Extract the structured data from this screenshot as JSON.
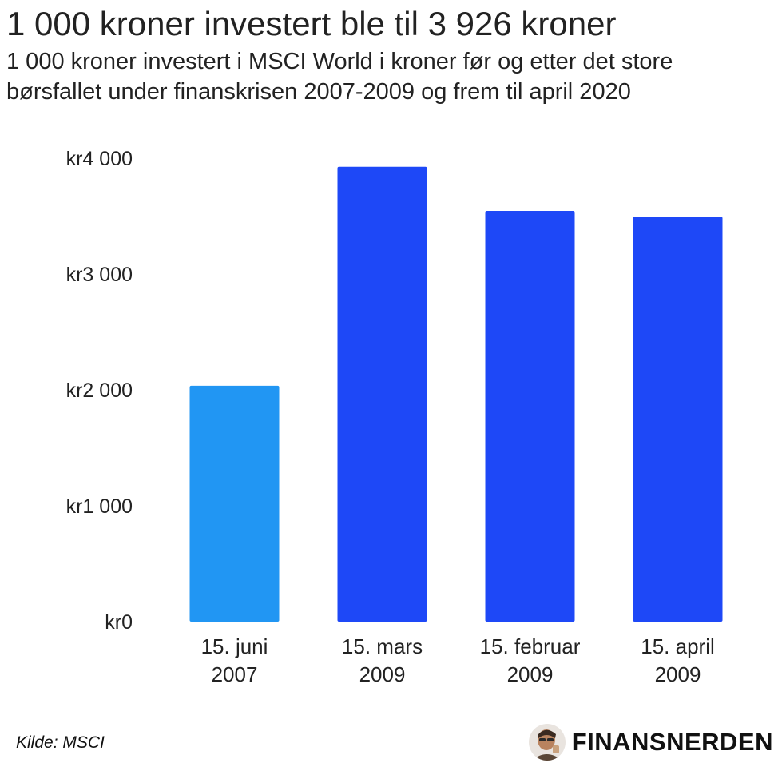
{
  "chart_data": {
    "type": "bar",
    "title": "1 000 kroner investert ble til 3 926 kroner",
    "subtitle": "1 000 kroner investert i MSCI World i kroner før og etter det store børsfallet under finanskrisen 2007-2009 og frem til april 2020",
    "categories": [
      [
        "15. juni",
        "2007"
      ],
      [
        "15. mars",
        "2009"
      ],
      [
        "15. februar",
        "2009"
      ],
      [
        "15. april",
        "2009"
      ]
    ],
    "values": [
      2035,
      3926,
      3545,
      3495
    ],
    "bar_colors": [
      "#2196f3",
      "#1e48f7",
      "#1e48f7",
      "#1e48f7"
    ],
    "ylim": [
      0,
      4000
    ],
    "yticks": [
      0,
      1000,
      2000,
      3000,
      4000
    ],
    "ytick_labels": [
      "kr0",
      "kr1 000",
      "kr2 000",
      "kr3 000",
      "kr4 000"
    ],
    "xlabel": "",
    "ylabel": "",
    "grid": false,
    "legend": "none"
  },
  "footer": {
    "source": "Kilde: MSCI",
    "brand": "FINANSNERDEN",
    "brand_logo_icon": "person-portrait-icon"
  }
}
